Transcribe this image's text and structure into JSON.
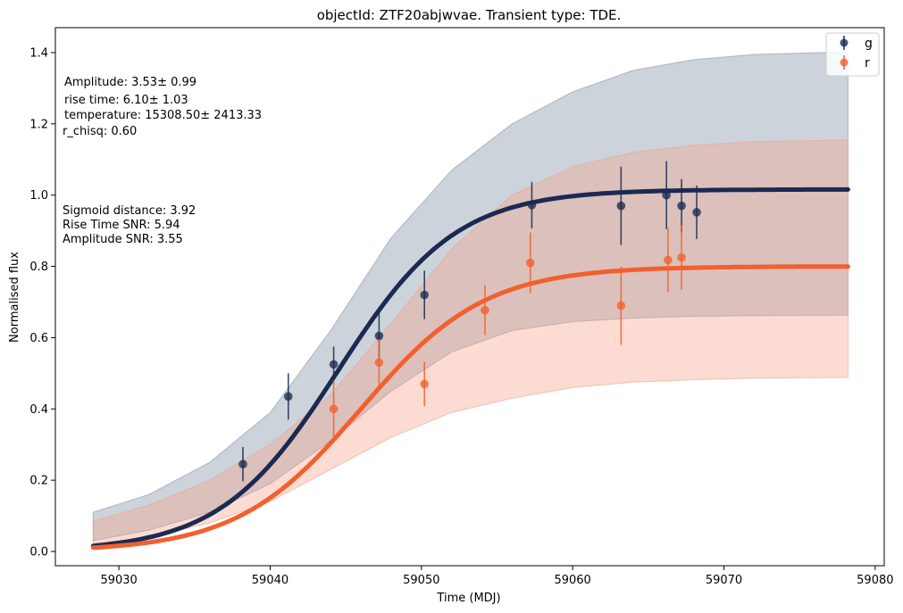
{
  "chart_data": {
    "type": "scatter",
    "title": "objectId: ZTF20abjwvae. Transient type: TDE.",
    "xlabel": "Time (MDJ)",
    "ylabel": "Normalised flux",
    "xlim": [
      59025.8,
      59080.6
    ],
    "ylim": [
      -0.04,
      1.47
    ],
    "xticks": [
      59030,
      59040,
      59050,
      59060,
      59070,
      59080
    ],
    "yticks": [
      0.0,
      0.2,
      0.4,
      0.6,
      0.8,
      1.0,
      1.2,
      1.4
    ],
    "grid": false,
    "legend_position": "top-right",
    "annotations": {
      "fit_params": [
        "Amplitude: 3.53± 0.99",
        "rise time: 6.10± 1.03",
        "temperature: 15308.50± 2413.33",
        "r_chisq: 0.60"
      ],
      "snr": [
        "Sigmoid distance: 3.92",
        "Rise Time SNR: 5.94",
        "Amplitude SNR: 3.55"
      ]
    },
    "series": [
      {
        "name": "g",
        "color": "#1a2a52",
        "points": [
          {
            "x": 59038.2,
            "y": 0.245,
            "yerr": 0.048
          },
          {
            "x": 59041.2,
            "y": 0.435,
            "yerr": 0.065
          },
          {
            "x": 59044.2,
            "y": 0.525,
            "yerr": 0.05
          },
          {
            "x": 59047.2,
            "y": 0.605,
            "yerr": 0.07
          },
          {
            "x": 59050.2,
            "y": 0.72,
            "yerr": 0.068
          },
          {
            "x": 59057.3,
            "y": 0.972,
            "yerr": 0.065
          },
          {
            "x": 59063.2,
            "y": 0.97,
            "yerr": 0.11
          },
          {
            "x": 59066.2,
            "y": 1.0,
            "yerr": 0.095
          },
          {
            "x": 59067.2,
            "y": 0.97,
            "yerr": 0.075
          },
          {
            "x": 59068.2,
            "y": 0.952,
            "yerr": 0.075
          }
        ],
        "fit": {
          "x0": 59044.5,
          "tau": 3.9,
          "A": 1.016,
          "offset": 0.0
        },
        "band": {
          "x": [
            59028.3,
            59032,
            59036,
            59040,
            59044,
            59048,
            59052,
            59056,
            59060,
            59064,
            59068,
            59072,
            59078.2
          ],
          "lower": [
            0.03,
            0.06,
            0.11,
            0.19,
            0.31,
            0.45,
            0.56,
            0.62,
            0.645,
            0.655,
            0.66,
            0.662,
            0.663
          ],
          "upper": [
            0.11,
            0.16,
            0.25,
            0.39,
            0.62,
            0.88,
            1.07,
            1.2,
            1.29,
            1.35,
            1.38,
            1.395,
            1.402
          ]
        }
      },
      {
        "name": "r",
        "color": "#f2602e",
        "points": [
          {
            "x": 59044.2,
            "y": 0.4,
            "yerr": 0.08
          },
          {
            "x": 59047.2,
            "y": 0.53,
            "yerr": 0.065
          },
          {
            "x": 59050.2,
            "y": 0.47,
            "yerr": 0.062
          },
          {
            "x": 59054.2,
            "y": 0.677,
            "yerr": 0.07
          },
          {
            "x": 59057.2,
            "y": 0.81,
            "yerr": 0.085
          },
          {
            "x": 59063.2,
            "y": 0.69,
            "yerr": 0.11
          },
          {
            "x": 59066.3,
            "y": 0.818,
            "yerr": 0.09
          },
          {
            "x": 59067.2,
            "y": 0.825,
            "yerr": 0.09
          }
        ],
        "fit": {
          "x0": 59046.0,
          "tau": 4.1,
          "A": 0.8,
          "offset": 0.0
        },
        "band": {
          "x": [
            59028.3,
            59032,
            59036,
            59040,
            59044,
            59048,
            59052,
            59056,
            59060,
            59064,
            59068,
            59072,
            59078.2
          ],
          "lower": [
            0.022,
            0.04,
            0.08,
            0.14,
            0.23,
            0.32,
            0.39,
            0.43,
            0.46,
            0.475,
            0.482,
            0.486,
            0.488
          ],
          "upper": [
            0.085,
            0.13,
            0.2,
            0.3,
            0.44,
            0.64,
            0.85,
            1.0,
            1.08,
            1.12,
            1.14,
            1.15,
            1.155
          ]
        }
      }
    ]
  }
}
